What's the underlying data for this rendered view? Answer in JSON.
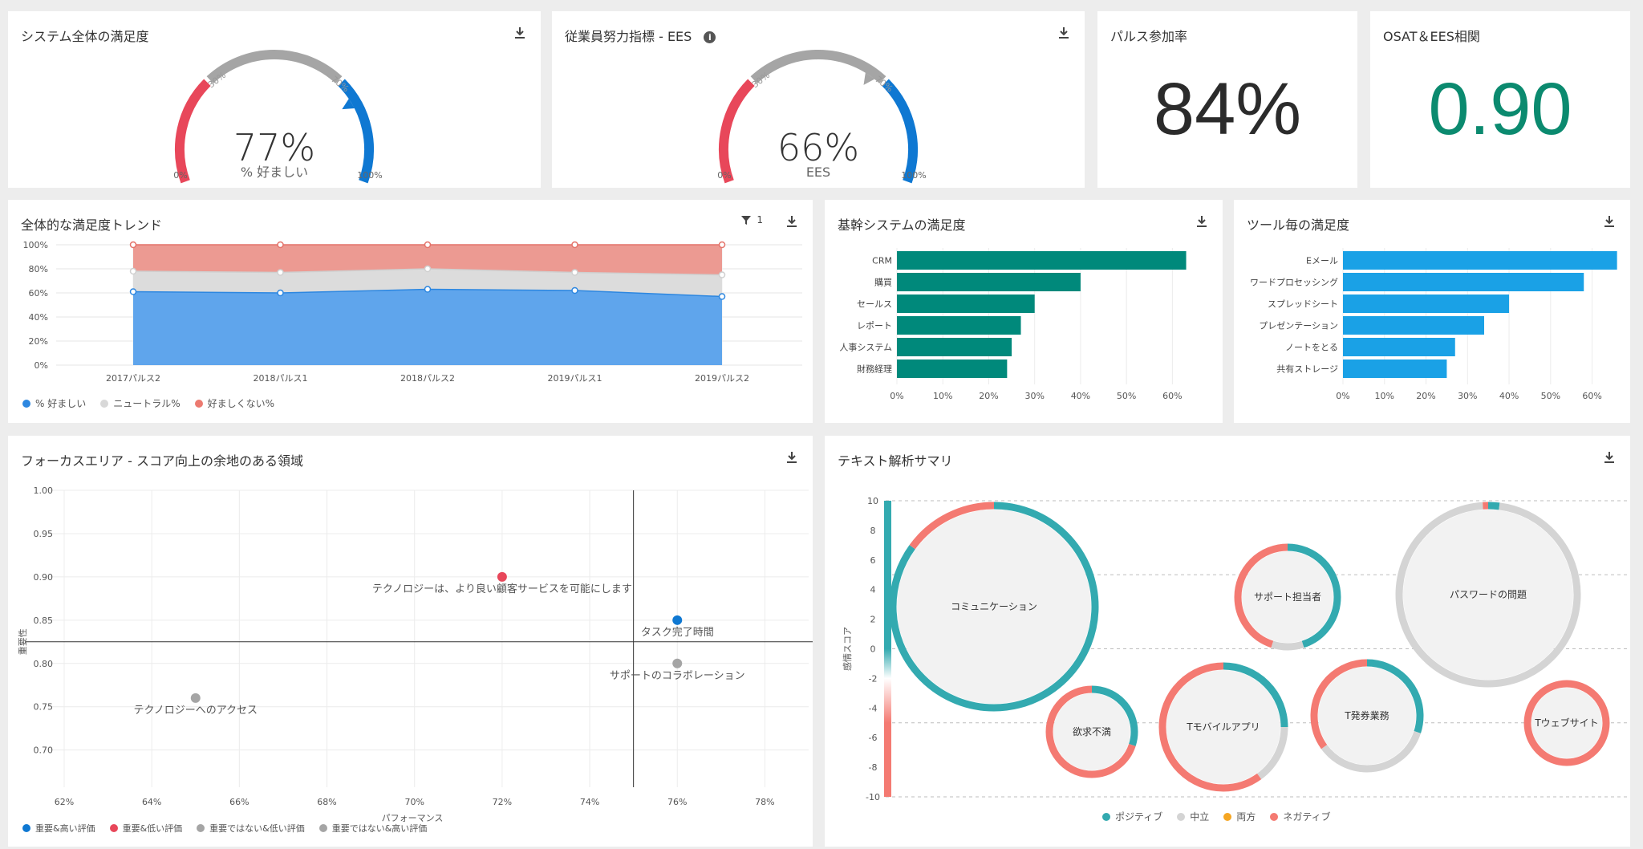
{
  "colors": {
    "negative": "#e8475a",
    "neutral_gray": "#a5a5a5",
    "positive_blue": "#0f78d2",
    "teal": "#00897b",
    "sky": "#1aa1e6",
    "corr_green": "#0b8a6f",
    "bubble_pos": "#33aab0",
    "bubble_neg": "#f47a72",
    "bubble_neu": "#d4d4d4",
    "bubble_both": "#f5a623"
  },
  "gauge1": {
    "title": "システム全体の満足度",
    "value": "77%",
    "label": "% 好ましい",
    "tick_0": "0%",
    "tick_30": "30%",
    "tick_70": "70%",
    "tick_100": "100%",
    "pointer_value": 77
  },
  "gauge2": {
    "title": "従業員努力指標 - EES",
    "value": "66%",
    "label": "EES",
    "tick_0": "0%",
    "tick_30": "30%",
    "tick_70": "70%",
    "tick_100": "100%",
    "pointer_value": 66
  },
  "pulse": {
    "title": "パルス参加率",
    "value": "84%"
  },
  "corr": {
    "title": "OSAT＆EES相関",
    "value": "0.90"
  },
  "trend": {
    "title": "全体的な満足度トレンド",
    "filter_count": "1",
    "legend": [
      "% 好ましい",
      "ニュートラル%",
      "好ましくない%"
    ]
  },
  "core": {
    "title": "基幹システムの満足度"
  },
  "tools": {
    "title": "ツール毎の満足度"
  },
  "focus": {
    "title": "フォーカスエリア - スコア向上の余地のある領域",
    "xlabel": "パフォーマンス",
    "ylabel": "重要性",
    "legend": [
      "重要&高い評価",
      "重要&低い評価",
      "重要ではない&低い評価",
      "重要ではない&高い評価"
    ]
  },
  "text": {
    "title": "テキスト解析サマリ",
    "ylabel": "感情スコア",
    "legend": [
      "ポジティブ",
      "中立",
      "両方",
      "ネガティブ"
    ]
  },
  "chart_data": [
    {
      "type": "area",
      "title": "全体的な満足度トレンド",
      "categories": [
        "2017パルス2",
        "2018パルス1",
        "2018パルス2",
        "2019パルス1",
        "2019パルス2"
      ],
      "series": [
        {
          "name": "% 好ましい",
          "values": [
            61,
            60,
            63,
            62,
            57
          ]
        },
        {
          "name": "ニュートラル%",
          "values": [
            17,
            17,
            17,
            15,
            18
          ]
        },
        {
          "name": "好ましくない%",
          "values": [
            22,
            23,
            20,
            23,
            25
          ]
        }
      ],
      "stacked": true,
      "ylim": [
        0,
        100
      ],
      "yticks": [
        "0%",
        "20%",
        "40%",
        "60%",
        "80%",
        "100%"
      ]
    },
    {
      "type": "bar",
      "orientation": "horizontal",
      "title": "基幹システムの満足度",
      "categories": [
        "CRM",
        "購買",
        "セールス",
        "レポート",
        "人事システム",
        "財務経理"
      ],
      "values": [
        63,
        40,
        30,
        27,
        25,
        24
      ],
      "xlim": [
        0,
        65
      ],
      "xticks": [
        "0%",
        "10%",
        "20%",
        "30%",
        "40%",
        "50%",
        "60%"
      ]
    },
    {
      "type": "bar",
      "orientation": "horizontal",
      "title": "ツール毎の満足度",
      "categories": [
        "Eメール",
        "ワードプロセッシング",
        "スプレッドシート",
        "プレゼンテーション",
        "ノートをとる",
        "共有ストレージ"
      ],
      "values": [
        66,
        58,
        40,
        34,
        27,
        25
      ],
      "xlim": [
        0,
        68
      ],
      "xticks": [
        "0%",
        "10%",
        "20%",
        "30%",
        "40%",
        "50%",
        "60%"
      ]
    },
    {
      "type": "scatter",
      "title": "フォーカスエリア - スコア向上の余地のある領域",
      "xlabel": "パフォーマンス",
      "ylabel": "重要性",
      "xlim": [
        62,
        79
      ],
      "ylim": [
        0.67,
        1.0
      ],
      "xticks": [
        "62%",
        "64%",
        "66%",
        "68%",
        "70%",
        "72%",
        "74%",
        "76%",
        "78%"
      ],
      "yticks": [
        "0.70",
        "0.75",
        "0.80",
        "0.85",
        "0.90",
        "0.95",
        "1.00"
      ],
      "x_divider": 75,
      "y_divider": 0.825,
      "points": [
        {
          "label": "テクノロジーは、より良い顧客サービスを可能にします",
          "x": 72,
          "y": 0.9,
          "group": "重要&低い評価"
        },
        {
          "label": "タスク完了時間",
          "x": 76,
          "y": 0.85,
          "group": "重要&高い評価"
        },
        {
          "label": "サポートのコラボレーション",
          "x": 76,
          "y": 0.8,
          "group": "重要ではない&高い評価"
        },
        {
          "label": "テクノロジーへのアクセス",
          "x": 65,
          "y": 0.76,
          "group": "重要ではない&低い評価"
        }
      ]
    },
    {
      "type": "bubble",
      "title": "テキスト解析サマリ",
      "ylabel": "感情スコア",
      "ylim": [
        -10,
        10
      ],
      "yticks": [
        "10",
        "8",
        "6",
        "4",
        "2",
        "0",
        "-2",
        "-4",
        "-6",
        "-8",
        "-10"
      ],
      "bubbles": [
        {
          "label": "コミュニケーション",
          "positive": 0.85,
          "neutral": 0.0,
          "negative": 0.15
        },
        {
          "label": "欲求不満",
          "positive": 0.3,
          "neutral": 0.0,
          "negative": 0.7
        },
        {
          "label": "Tモバイルアプリ",
          "positive": 0.25,
          "neutral": 0.15,
          "negative": 0.6
        },
        {
          "label": "サポート担当者",
          "positive": 0.45,
          "neutral": 0.1,
          "negative": 0.45
        },
        {
          "label": "T発券業務",
          "positive": 0.3,
          "neutral": 0.35,
          "negative": 0.35
        },
        {
          "label": "パスワードの問題",
          "positive": 0.02,
          "neutral": 0.97,
          "negative": 0.01
        },
        {
          "label": "Tウェブサイト",
          "positive": 0.0,
          "neutral": 0.0,
          "negative": 1.0
        }
      ]
    }
  ]
}
